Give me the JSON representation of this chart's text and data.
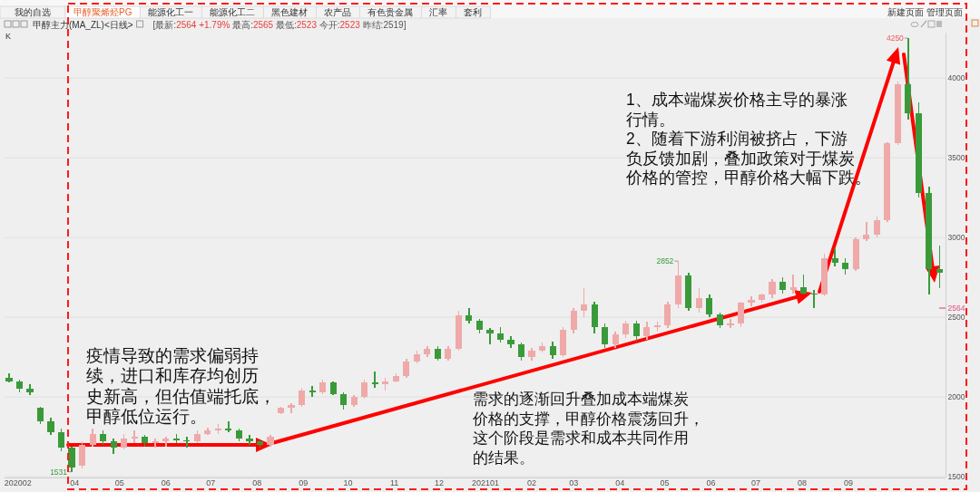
{
  "chart_data": {
    "type": "candlestick",
    "title": "甲醇主力(MA_ZL)<日线>",
    "subtitle": "[最新:2564 +1.79% 最高:2565 最低:2523 今开:2523 昨结:2519]",
    "x": [
      "2020-02-17",
      "2020-02-24",
      "2020-03-02",
      "2020-03-09",
      "2020-03-16",
      "2020-03-23",
      "2020-03-30",
      "2020-04-06",
      "2020-04-13",
      "2020-04-20",
      "2020-04-27",
      "2020-05-04",
      "2020-05-11",
      "2020-05-18",
      "2020-05-25",
      "2020-06-01",
      "2020-06-08",
      "2020-06-15",
      "2020-06-22",
      "2020-06-29",
      "2020-07-06",
      "2020-07-13",
      "2020-07-20",
      "2020-07-27",
      "2020-08-03",
      "2020-08-10",
      "2020-08-17",
      "2020-08-24",
      "2020-08-31",
      "2020-09-07",
      "2020-09-14",
      "2020-09-21",
      "2020-09-28",
      "2020-10-05",
      "2020-10-12",
      "2020-10-19",
      "2020-10-26",
      "2020-11-02",
      "2020-11-09",
      "2020-11-16",
      "2020-11-23",
      "2020-11-30",
      "2020-12-07",
      "2020-12-14",
      "2020-12-21",
      "2020-12-28",
      "2021-01-04",
      "2021-01-11",
      "2021-01-18",
      "2021-01-25",
      "2021-02-01",
      "2021-02-08",
      "2021-02-15",
      "2021-02-22",
      "2021-03-01",
      "2021-03-08",
      "2021-03-15",
      "2021-03-22",
      "2021-03-29",
      "2021-04-05",
      "2021-04-12",
      "2021-04-19",
      "2021-04-26",
      "2021-05-03",
      "2021-05-10",
      "2021-05-17",
      "2021-05-24",
      "2021-05-31",
      "2021-06-07",
      "2021-06-14",
      "2021-06-21",
      "2021-06-28",
      "2021-07-05",
      "2021-07-12",
      "2021-07-19",
      "2021-07-26",
      "2021-08-02",
      "2021-08-09",
      "2021-08-16",
      "2021-08-23",
      "2021-08-30",
      "2021-09-06",
      "2021-09-13",
      "2021-09-20",
      "2021-09-27",
      "2021-10-04",
      "2021-10-11",
      "2021-10-18",
      "2021-10-25",
      "2021-11-01"
    ],
    "ohlc": [
      [
        2120,
        2150,
        2090,
        2100
      ],
      [
        2100,
        2110,
        2030,
        2050
      ],
      [
        2050,
        2080,
        2010,
        2030
      ],
      [
        1930,
        1940,
        1830,
        1850
      ],
      [
        1850,
        1870,
        1760,
        1780
      ],
      [
        1780,
        1800,
        1660,
        1680
      ],
      [
        1680,
        1690,
        1531,
        1560
      ],
      [
        1570,
        1720,
        1550,
        1700
      ],
      [
        1700,
        1800,
        1690,
        1770
      ],
      [
        1770,
        1790,
        1700,
        1720
      ],
      [
        1720,
        1740,
        1640,
        1680
      ],
      [
        1680,
        1770,
        1670,
        1740
      ],
      [
        1740,
        1790,
        1710,
        1750
      ],
      [
        1750,
        1760,
        1690,
        1710
      ],
      [
        1710,
        1740,
        1680,
        1720
      ],
      [
        1720,
        1750,
        1690,
        1740
      ],
      [
        1740,
        1770,
        1710,
        1730
      ],
      [
        1730,
        1750,
        1680,
        1720
      ],
      [
        1720,
        1790,
        1710,
        1770
      ],
      [
        1770,
        1810,
        1760,
        1790
      ],
      [
        1790,
        1830,
        1770,
        1800
      ],
      [
        1800,
        1850,
        1780,
        1790
      ],
      [
        1790,
        1800,
        1720,
        1740
      ],
      [
        1740,
        1760,
        1700,
        1720
      ],
      [
        1720,
        1730,
        1680,
        1700
      ],
      [
        1700,
        1760,
        1690,
        1750
      ],
      [
        1900,
        1940,
        1890,
        1930
      ],
      [
        1930,
        1960,
        1900,
        1950
      ],
      [
        1950,
        2060,
        1940,
        2040
      ],
      [
        2040,
        2070,
        2000,
        2030
      ],
      [
        2030,
        2110,
        2020,
        2090
      ],
      [
        2090,
        2100,
        2010,
        2020
      ],
      [
        2020,
        2030,
        1920,
        1950
      ],
      [
        1950,
        2010,
        1940,
        2000
      ],
      [
        2000,
        2110,
        1990,
        2090
      ],
      [
        2090,
        2160,
        2060,
        2080
      ],
      [
        2080,
        2120,
        2040,
        2100
      ],
      [
        2100,
        2150,
        2090,
        2130
      ],
      [
        2130,
        2240,
        2120,
        2220
      ],
      [
        2220,
        2290,
        2210,
        2270
      ],
      [
        2270,
        2320,
        2250,
        2300
      ],
      [
        2300,
        2320,
        2230,
        2240
      ],
      [
        2240,
        2320,
        2230,
        2300
      ],
      [
        2300,
        2540,
        2290,
        2510
      ],
      [
        2510,
        2560,
        2460,
        2480
      ],
      [
        2480,
        2490,
        2400,
        2420
      ],
      [
        2420,
        2430,
        2330,
        2400
      ],
      [
        2400,
        2440,
        2340,
        2360
      ],
      [
        2360,
        2380,
        2310,
        2330
      ],
      [
        2330,
        2340,
        2230,
        2250
      ],
      [
        2250,
        2310,
        2230,
        2290
      ],
      [
        2290,
        2340,
        2280,
        2320
      ],
      [
        2320,
        2350,
        2240,
        2260
      ],
      [
        2260,
        2440,
        2250,
        2420
      ],
      [
        2420,
        2560,
        2400,
        2540
      ],
      [
        2540,
        2680,
        2500,
        2580
      ],
      [
        2580,
        2600,
        2400,
        2440
      ],
      [
        2440,
        2460,
        2310,
        2330
      ],
      [
        2330,
        2410,
        2310,
        2390
      ],
      [
        2390,
        2480,
        2370,
        2460
      ],
      [
        2460,
        2480,
        2350,
        2380
      ],
      [
        2380,
        2470,
        2360,
        2440
      ],
      [
        2440,
        2470,
        2410,
        2450
      ],
      [
        2450,
        2600,
        2430,
        2580
      ],
      [
        2580,
        2852,
        2560,
        2760
      ],
      [
        2760,
        2780,
        2540,
        2560
      ],
      [
        2560,
        2680,
        2530,
        2620
      ],
      [
        2620,
        2640,
        2500,
        2520
      ],
      [
        2520,
        2530,
        2430,
        2450
      ],
      [
        2450,
        2490,
        2430,
        2460
      ],
      [
        2460,
        2600,
        2440,
        2590
      ],
      [
        2590,
        2630,
        2570,
        2610
      ],
      [
        2610,
        2650,
        2590,
        2640
      ],
      [
        2640,
        2740,
        2620,
        2720
      ],
      [
        2720,
        2750,
        2650,
        2670
      ],
      [
        2670,
        2770,
        2650,
        2690
      ],
      [
        2690,
        2770,
        2640,
        2650
      ],
      [
        2650,
        2670,
        2560,
        2640
      ],
      [
        2640,
        2900,
        2630,
        2870
      ],
      [
        2870,
        2930,
        2820,
        2840
      ],
      [
        2840,
        2870,
        2770,
        2800
      ],
      [
        2800,
        3000,
        2790,
        2990
      ],
      [
        2990,
        3100,
        2980,
        3020
      ],
      [
        3020,
        3130,
        3000,
        3110
      ],
      [
        3110,
        3600,
        3100,
        3590
      ],
      [
        3590,
        3980,
        3580,
        3960
      ],
      [
        3960,
        4250,
        3740,
        3780
      ],
      [
        3780,
        3850,
        3250,
        3280
      ],
      [
        3280,
        3320,
        2640,
        2800
      ],
      [
        2800,
        2950,
        2680,
        2780
      ]
    ],
    "colors": [
      "#3a9a3a",
      "#3a9a3a",
      "#3a9a3a",
      "#3a9a3a",
      "#3a9a3a",
      "#3a9a3a",
      "#3a9a3a",
      "#efa9a9",
      "#efa9a9",
      "#3a9a3a",
      "#3a9a3a",
      "#efa9a9",
      "#efa9a9",
      "#3a9a3a",
      "#efa9a9",
      "#efa9a9",
      "#3a9a3a",
      "#3a9a3a",
      "#efa9a9",
      "#efa9a9",
      "#efa9a9",
      "#3a9a3a",
      "#3a9a3a",
      "#3a9a3a",
      "#3a9a3a",
      "#efa9a9",
      "#efa9a9",
      "#efa9a9",
      "#efa9a9",
      "#3a9a3a",
      "#efa9a9",
      "#3a9a3a",
      "#3a9a3a",
      "#efa9a9",
      "#efa9a9",
      "#3a9a3a",
      "#efa9a9",
      "#efa9a9",
      "#efa9a9",
      "#efa9a9",
      "#efa9a9",
      "#3a9a3a",
      "#efa9a9",
      "#efa9a9",
      "#3a9a3a",
      "#3a9a3a",
      "#3a9a3a",
      "#3a9a3a",
      "#3a9a3a",
      "#3a9a3a",
      "#efa9a9",
      "#efa9a9",
      "#3a9a3a",
      "#efa9a9",
      "#efa9a9",
      "#efa9a9",
      "#3a9a3a",
      "#3a9a3a",
      "#efa9a9",
      "#efa9a9",
      "#3a9a3a",
      "#efa9a9",
      "#efa9a9",
      "#efa9a9",
      "#efa9a9",
      "#3a9a3a",
      "#efa9a9",
      "#3a9a3a",
      "#3a9a3a",
      "#efa9a9",
      "#efa9a9",
      "#efa9a9",
      "#efa9a9",
      "#efa9a9",
      "#3a9a3a",
      "#efa9a9",
      "#3a9a3a",
      "#3a9a3a",
      "#efa9a9",
      "#3a9a3a",
      "#3a9a3a",
      "#efa9a9",
      "#efa9a9",
      "#efa9a9",
      "#efa9a9",
      "#efa9a9",
      "#3a9a3a",
      "#3a9a3a",
      "#3a9a3a",
      "#3a9a3a"
    ],
    "xlim": [
      "2020-02-14",
      "2021-11-05"
    ],
    "xticks": [
      {
        "value": "2020-02-23",
        "label": "202002"
      },
      {
        "value": "2020-04-01",
        "label": "04"
      },
      {
        "value": "2020-05-01",
        "label": "05"
      },
      {
        "value": "2020-06-01",
        "label": "06"
      },
      {
        "value": "2020-07-01",
        "label": "07"
      },
      {
        "value": "2020-08-01",
        "label": "08"
      },
      {
        "value": "2020-09-01",
        "label": "09"
      },
      {
        "value": "2020-10-01",
        "label": "10"
      },
      {
        "value": "2020-11-01",
        "label": "11"
      },
      {
        "value": "2020-12-01",
        "label": "12"
      },
      {
        "value": "2021-01-01",
        "label": "202101"
      },
      {
        "value": "2021-02-01",
        "label": "02"
      },
      {
        "value": "2021-03-01",
        "label": "03"
      },
      {
        "value": "2021-04-01",
        "label": "04"
      },
      {
        "value": "2021-05-01",
        "label": "05"
      },
      {
        "value": "2021-06-01",
        "label": "06"
      },
      {
        "value": "2021-07-01",
        "label": "07"
      },
      {
        "value": "2021-08-01",
        "label": "08"
      },
      {
        "value": "2021-09-01",
        "label": "09"
      }
    ],
    "ylim": [
      1495,
      4285
    ],
    "yticks": [
      1500,
      2000,
      2500,
      3000,
      3500,
      4000
    ],
    "grid": "y",
    "annotations": [
      "我的自选",
      "甲醇聚烯烃PG",
      "能源化工一",
      "能源化工二",
      "黑色建材",
      "农产品",
      "有色贵金属",
      "汇率",
      "套利",
      "新建页面",
      "管理页面",
      "K",
      {
        "text": "疫情导致的需求偏弱持续，进口和库存均创历史新高，但估值端托底，甲醇低位运行。",
        "x": "2020-04-01",
        "y": 1700
      },
      "需求的逐渐回升叠加成本端煤炭价格的支撑，甲醇价格震荡回升，这个阶段是需求和成本共同作用的结果。",
      "1、成本端煤炭价格主导的暴涨行情。",
      "2、随着下游利润被挤占，下游负反馈加剧，叠加政策对于煤炭价格的管控，甲醇价格大幅下跌。",
      {
        "text": "1531",
        "x": "2020-03-30",
        "y": 1531
      },
      {
        "text": "2852",
        "x": "2021-05-10",
        "y": 2852
      },
      {
        "text": "4250",
        "x": "2021-10-11",
        "y": 4250
      },
      "2564"
    ]
  }
}
